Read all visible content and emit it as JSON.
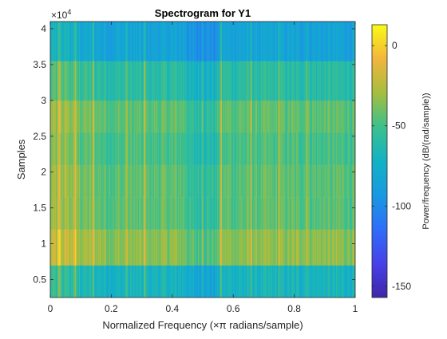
{
  "chart_data": {
    "type": "heatmap",
    "title": "Spectrogram for Y1",
    "xlabel": "Normalized Frequency (×π radians/sample)",
    "ylabel": "Samples",
    "xlim": [
      0,
      1
    ],
    "ylim": [
      2500,
      41000
    ],
    "x_ticks": [
      0,
      0.2,
      0.4,
      0.6,
      0.8,
      1
    ],
    "x_tick_labels": [
      "0",
      "0.2",
      "0.4",
      "0.6",
      "0.8",
      "1"
    ],
    "y_ticks": [
      5000,
      10000,
      15000,
      20000,
      25000,
      30000,
      35000,
      40000
    ],
    "y_tick_labels": [
      "0.5",
      "1",
      "1.5",
      "2",
      "2.5",
      "3",
      "3.5",
      "4"
    ],
    "y_exponent_prefix": "×10",
    "y_exponent": "4",
    "colorbar": {
      "label": "Power/frequency (dB/(rad/sample))",
      "range": [
        -157,
        13
      ],
      "ticks": [
        0,
        -50,
        -100,
        -150
      ],
      "tick_labels": [
        "0",
        "-50",
        "-100",
        "-150"
      ],
      "colormap": "parula"
    },
    "row_bands_samples": [
      [
        2500,
        7000
      ],
      [
        7000,
        12000
      ],
      [
        12000,
        16500
      ],
      [
        16500,
        21000
      ],
      [
        21000,
        25500
      ],
      [
        25500,
        30000
      ],
      [
        30000,
        35500
      ],
      [
        35500,
        41000
      ]
    ],
    "band_level_db": [
      -70,
      -35,
      -45,
      -45,
      -50,
      -45,
      -60,
      -85
    ],
    "grid": false
  }
}
